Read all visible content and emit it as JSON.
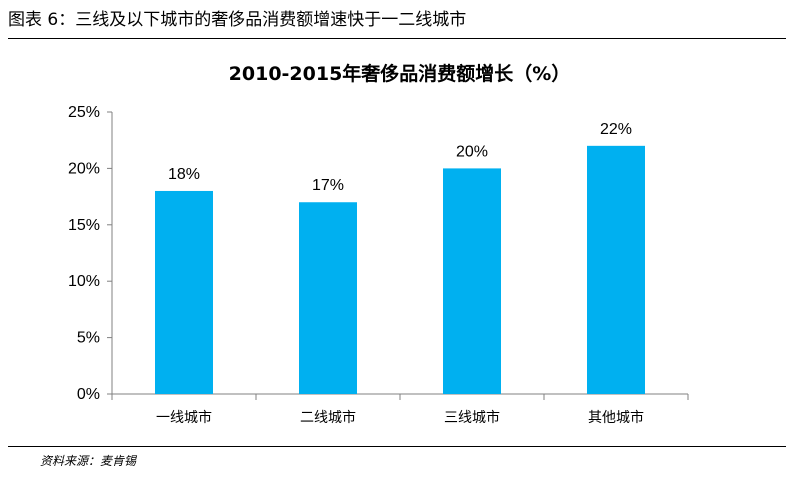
{
  "header": {
    "figure_title": "图表 6：三线及以下城市的奢侈品消费额增速快于一二线城市"
  },
  "chart_data": {
    "type": "bar",
    "title": "2010-2015年奢侈品消费额增长（%）",
    "categories": [
      "一线城市",
      "二线城市",
      "三线城市",
      "其他城市"
    ],
    "values": [
      18,
      17,
      20,
      22
    ],
    "value_labels": [
      "18%",
      "17%",
      "20%",
      "22%"
    ],
    "ylim": [
      0,
      25
    ],
    "yticks": [
      0,
      5,
      10,
      15,
      20,
      25
    ],
    "ytick_labels": [
      "0%",
      "5%",
      "10%",
      "15%",
      "20%",
      "25%"
    ],
    "xlabel": "",
    "ylabel": "",
    "grid": false,
    "legend": "none",
    "bar_color": "#00B0F0"
  },
  "footer": {
    "source": "资料来源：麦肯锡"
  }
}
